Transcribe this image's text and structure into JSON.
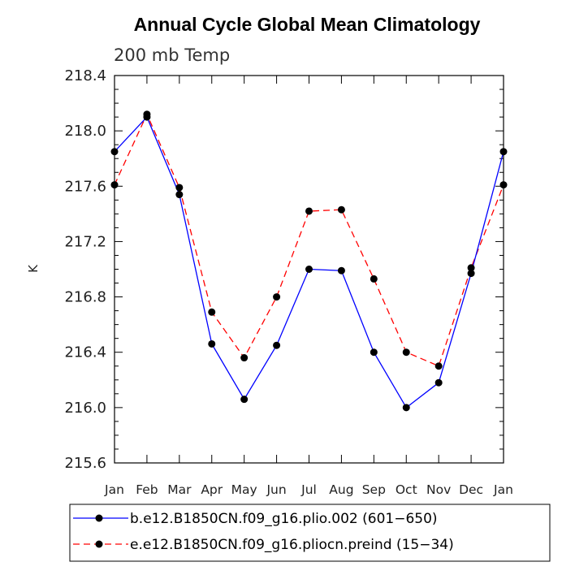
{
  "chart_data": {
    "type": "line",
    "title": "Annual Cycle Global Mean Climatology",
    "subtitle": "200 mb Temp",
    "xlabel": "",
    "ylabel": "K",
    "ylim": [
      215.6,
      218.4
    ],
    "yticks": [
      "215.6",
      "216.0",
      "216.4",
      "216.8",
      "217.2",
      "217.6",
      "218.0",
      "218.4"
    ],
    "categories": [
      "Jan",
      "Feb",
      "Mar",
      "Apr",
      "May",
      "Jun",
      "Jul",
      "Aug",
      "Sep",
      "Oct",
      "Nov",
      "Dec",
      "Jan"
    ],
    "grid": false,
    "legend_position": "bottom",
    "series": [
      {
        "name": "b.e12.B1850CN.f09_g16.plio.002 (601−650)",
        "color": "#0000ff",
        "dash": "solid",
        "marker": "filled-circle",
        "values": [
          217.85,
          218.1,
          217.54,
          216.46,
          216.06,
          216.45,
          217.0,
          216.99,
          216.4,
          216.0,
          216.18,
          216.97,
          217.85
        ]
      },
      {
        "name": "e.e12.B1850CN.f09_g16.pliocn.preind (15−34)",
        "color": "#ff0000",
        "dash": "dashed",
        "marker": "filled-circle",
        "values": [
          217.61,
          218.12,
          217.59,
          216.69,
          216.36,
          216.8,
          217.42,
          217.43,
          216.93,
          216.4,
          216.3,
          217.01,
          217.61
        ]
      }
    ]
  }
}
